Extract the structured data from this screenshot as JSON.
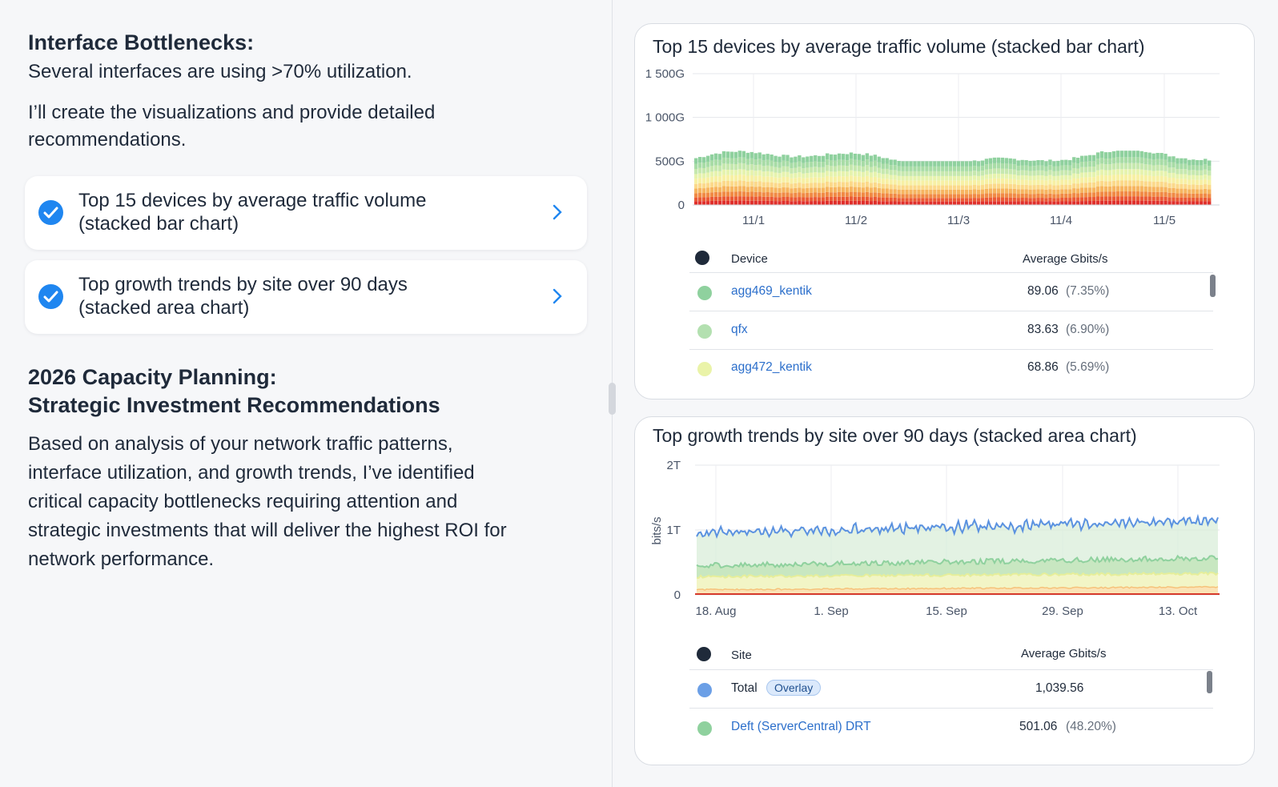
{
  "left": {
    "bottlenecks_heading": "Interface Bottlenecks:",
    "bottlenecks_text": "Several interfaces are using >70% utilization.",
    "intro_line1": "I’ll create the visualizations and provide detailed",
    "intro_line2": "recommendations.",
    "cards": [
      {
        "line1": "Top 15 devices by average traffic volume",
        "line2": "(stacked bar chart)"
      },
      {
        "line1": "Top growth trends by site over 90 days",
        "line2": "(stacked area chart)"
      }
    ],
    "planning_heading1": "2026 Capacity Planning:",
    "planning_heading2": "Strategic Investment Recommendations",
    "body_lines": [
      "Based on analysis of your network traffic patterns,",
      "interface utilization, and growth trends, I’ve identified",
      "critical capacity bottlenecks requiring attention and",
      "strategic investments that will deliver the highest ROI for",
      "network performance."
    ]
  },
  "panel1": {
    "title": "Top 15 devices by average traffic volume (stacked bar chart)",
    "col_device": "Device",
    "col_avg": "Average Gbits/s",
    "rows": [
      {
        "name": "agg469_kentik",
        "value": "89.06",
        "pct": "(7.35%)",
        "color": "#8fd19e"
      },
      {
        "name": "qfx",
        "value": "83.63",
        "pct": "(6.90%)",
        "color": "#b3e0b0"
      },
      {
        "name": "agg472_kentik",
        "value": "68.86",
        "pct": "(5.69%)",
        "color": "#eaf3a8"
      }
    ]
  },
  "panel2": {
    "title": "Top growth trends by site over 90 days (stacked area chart)",
    "col_site": "Site",
    "col_avg": "Average Gbits/s",
    "rows": [
      {
        "name": "Total",
        "badge": "Overlay",
        "value": "1,039.56",
        "pct": "",
        "color": "#6b9fe6"
      },
      {
        "name": "Deft (ServerCentral) DRT",
        "value": "501.06",
        "pct": "(48.20%)",
        "color": "#8fd19e"
      }
    ]
  },
  "chart_data": [
    {
      "type": "bar",
      "stacked": true,
      "title": "Top 15 devices by average traffic volume (stacked bar chart)",
      "xlabel": "",
      "ylabel": "",
      "x_ticks": [
        "11/1",
        "11/2",
        "11/3",
        "11/4",
        "11/5"
      ],
      "y_ticks": [
        "1 500G",
        "1 000G",
        "500G",
        "0"
      ],
      "ylim": [
        0,
        1500
      ],
      "bar_count": 130,
      "approx_total_range": [
        500,
        620
      ],
      "grid": true,
      "layer_colors": [
        "#e0302c",
        "#ea5a35",
        "#f08a45",
        "#f6b560",
        "#fbd98a",
        "#f7f0a4",
        "#e6f3ae",
        "#c6e8ae",
        "#a8dca6",
        "#8fd19e"
      ]
    },
    {
      "type": "area",
      "stacked": true,
      "title": "Top growth trends by site over 90 days (stacked area chart)",
      "ylabel": "bits/s",
      "xlabel": "",
      "x_ticks": [
        "18. Aug",
        "1. Sep",
        "15. Sep",
        "29. Sep",
        "13. Oct"
      ],
      "y_ticks": [
        "2T",
        "1T",
        "0"
      ],
      "ylim": [
        0,
        2
      ],
      "series": [
        {
          "name": "Total",
          "approx_range": [
            0.9,
            1.22
          ],
          "color": "#5b92e0"
        },
        {
          "name": "Deft (ServerCentral) DRT",
          "approx_range": [
            0.4,
            0.62
          ],
          "color": "#8fd19e"
        }
      ],
      "grid": true
    }
  ]
}
